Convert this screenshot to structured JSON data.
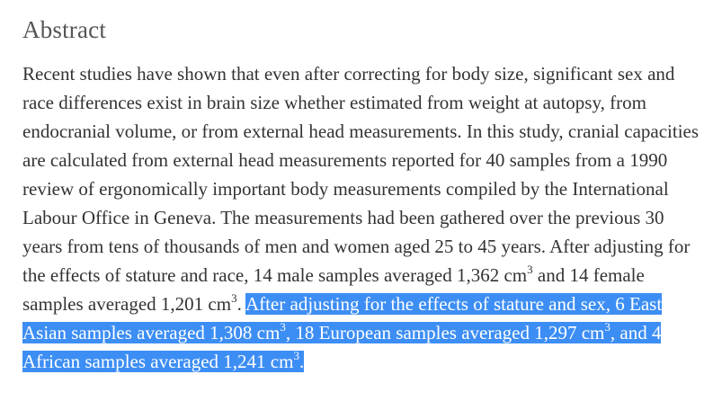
{
  "abstract": {
    "heading": "Abstract",
    "text_before_selection": "Recent studies have shown that even after correcting for body size, significant sex and race differences exist in brain size whether estimated from weight at autopsy, from endocranial volume, or from external head measurements. In this study, cranial capacities are calculated from external head measurements reported for 40 samples from a 1990 review of ergonomically important body measurements compiled by the International Labour Office in Geneva. The measurements had been gathered over the previous 30 years from tens of thousands of men and women aged 25 to 45 years. After adjusting for the effects of stature and race, 14 male samples averaged 1,362 cm",
    "sup_1": "3",
    "text_2": " and 14 female samples averaged 1,201 cm",
    "sup_2": "3",
    "text_3": ". ",
    "selection": {
      "part_1": "After adjusting for the effects of stature and sex, 6 East Asian samples averaged 1,308 cm",
      "sup_1": "3",
      "part_2": ", 18 European samples averaged 1,297 cm",
      "sup_2": "3",
      "part_3": ", and 4 African samples averaged 1,241 cm",
      "sup_3": "3",
      "part_4": "."
    },
    "colors": {
      "selection_highlight": "#3d8ef4",
      "selection_text": "#ffffff",
      "body_text": "#333333",
      "heading_text": "#555555"
    }
  }
}
